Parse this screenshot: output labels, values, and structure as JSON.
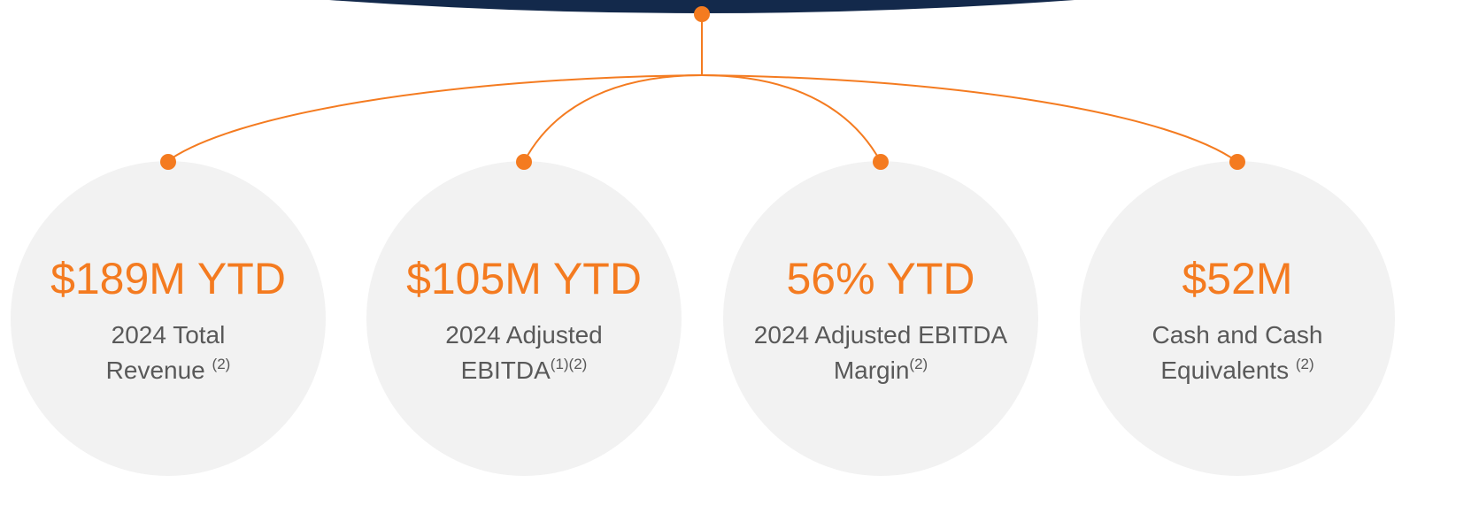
{
  "items": [
    {
      "value": "$189M YTD",
      "lines": [
        "2024 Total",
        "Revenue"
      ],
      "note": "(2)"
    },
    {
      "value": "$105M YTD",
      "lines": [
        "2024 Adjusted",
        "EBITDA"
      ],
      "note": "(1)(2)"
    },
    {
      "value": "56% YTD",
      "lines": [
        "2024 Adjusted EBITDA",
        "Margin"
      ],
      "note": "(2)"
    },
    {
      "value": "$52M",
      "lines": [
        "Cash and Cash",
        "Equivalents"
      ],
      "note": "(2)"
    }
  ]
}
